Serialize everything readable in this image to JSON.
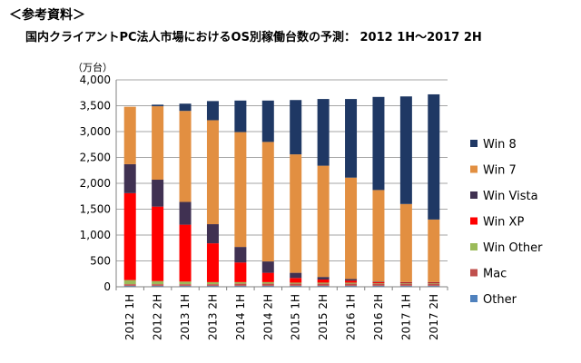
{
  "header": {
    "heading": "＜参考資料＞",
    "subtitle": "国内クライアントPC法人市場におけるOS別稼働台数の予測：  2012 1H〜2017 2H"
  },
  "chart_data": {
    "type": "bar",
    "stacked": true,
    "title": "国内クライアントPC法人市場におけるOS別稼働台数の予測：  2012 1H〜2017 2H",
    "unit_label": "（万台）",
    "xlabel": "",
    "ylabel": "",
    "ylim": [
      0,
      4000
    ],
    "yticks": [
      "0",
      "500",
      "1,000",
      "1,500",
      "2,000",
      "2,500",
      "3,000",
      "3,500",
      "4,000"
    ],
    "grid": true,
    "legend_position": "right",
    "categories": [
      "2012 1H",
      "2012 2H",
      "2013 1H",
      "2013 2H",
      "2014 1H",
      "2014 2H",
      "2015 1H",
      "2015 2H",
      "2016 1H",
      "2016 2H",
      "2017 1H",
      "2017 2H"
    ],
    "series": [
      {
        "name": "Other",
        "color": "#4f81bd",
        "values": [
          20,
          20,
          20,
          20,
          20,
          20,
          20,
          20,
          20,
          20,
          20,
          20
        ]
      },
      {
        "name": "Mac",
        "color": "#c0504d",
        "values": [
          30,
          30,
          30,
          30,
          40,
          40,
          40,
          40,
          40,
          40,
          40,
          40
        ]
      },
      {
        "name": "Win Other",
        "color": "#9bbb59",
        "values": [
          80,
          60,
          50,
          40,
          30,
          30,
          20,
          20,
          20,
          10,
          10,
          10
        ]
      },
      {
        "name": "Win XP",
        "color": "#ff0000",
        "values": [
          1680,
          1440,
          1100,
          750,
          380,
          180,
          90,
          60,
          40,
          20,
          10,
          10
        ]
      },
      {
        "name": "Win Vista",
        "color": "#403152",
        "values": [
          560,
          520,
          440,
          370,
          300,
          220,
          100,
          50,
          30,
          10,
          10,
          10
        ]
      },
      {
        "name": "Win 7",
        "color": "#e28f41",
        "values": [
          1110,
          1420,
          1760,
          2010,
          2220,
          2310,
          2290,
          2150,
          1960,
          1770,
          1510,
          1210
        ]
      },
      {
        "name": "Win 8",
        "color": "#1f3864",
        "values": [
          0,
          30,
          140,
          370,
          610,
          800,
          1050,
          1290,
          1520,
          1800,
          2080,
          2420
        ]
      }
    ]
  }
}
